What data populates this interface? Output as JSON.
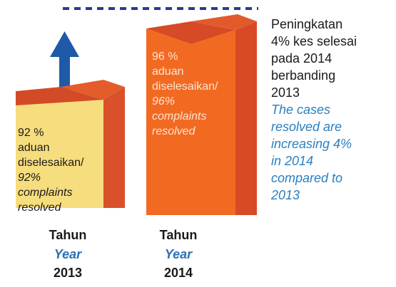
{
  "bars": [
    {
      "lines": [
        "92 %",
        "aduan",
        "diselesaikan/"
      ],
      "english": [
        "92%",
        "complaints",
        "resolved"
      ]
    },
    {
      "lines": [
        "96 %",
        "aduan",
        "diselesaikan/"
      ],
      "english": [
        "96%",
        "complaints",
        "resolved"
      ]
    }
  ],
  "years": [
    {
      "malay": "Tahun",
      "english": "Year",
      "year": "2013"
    },
    {
      "malay": "Tahun",
      "english": "Year",
      "year": "2014"
    }
  ],
  "note": {
    "malay": [
      "Peningkatan",
      "4% kes selesai",
      "pada 2014",
      "berbanding",
      "2013"
    ],
    "english": [
      "The cases",
      "resolved are",
      "increasing 4%",
      "in 2014",
      "compared to",
      "2013"
    ]
  }
}
